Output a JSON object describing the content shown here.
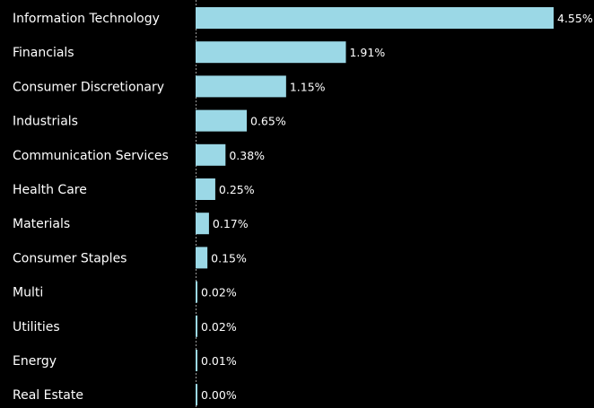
{
  "chart_data": {
    "type": "bar",
    "orientation": "horizontal",
    "categories": [
      "Information Technology",
      "Financials",
      "Consumer Discretionary",
      "Industrials",
      "Communication Services",
      "Health Care",
      "Materials",
      "Consumer Staples",
      "Multi",
      "Utilities",
      "Energy",
      "Real Estate"
    ],
    "values": [
      4.55,
      1.91,
      1.15,
      0.65,
      0.38,
      0.25,
      0.17,
      0.15,
      0.02,
      0.02,
      0.01,
      0.0
    ],
    "value_labels": [
      "4.55%",
      "1.91%",
      "1.15%",
      "0.65%",
      "0.38%",
      "0.25%",
      "0.17%",
      "0.15%",
      "0.02%",
      "0.02%",
      "0.01%",
      "0.00%"
    ],
    "title": "",
    "xlabel": "",
    "ylabel": "",
    "xlim": [
      0,
      4.55
    ],
    "grid": false,
    "legend": "none",
    "colors": {
      "background": "#000000",
      "bar": "#9bd8e6",
      "text": "#ffffff",
      "zero_line": "#9a9a9a"
    }
  }
}
